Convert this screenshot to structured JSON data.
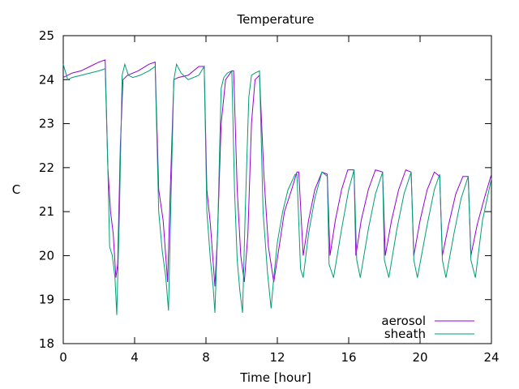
{
  "chart_data": {
    "type": "line",
    "title": "Temperature",
    "xlabel": "Time [hour]",
    "ylabel": "C",
    "xlim": [
      0,
      24
    ],
    "ylim": [
      18,
      25
    ],
    "xticks": [
      0,
      4,
      8,
      12,
      16,
      20,
      24
    ],
    "yticks": [
      18,
      19,
      20,
      21,
      22,
      23,
      24,
      25
    ],
    "grid": false,
    "legend_position": "bottom-right",
    "series": [
      {
        "name": "aerosol",
        "color": "#9400d3",
        "x": [
          0,
          0.5,
          1,
          1.5,
          2,
          2.35,
          2.5,
          2.65,
          2.8,
          2.95,
          3.05,
          3.2,
          3.35,
          3.6,
          4.2,
          4.8,
          5.15,
          5.35,
          5.6,
          5.85,
          6.0,
          6.2,
          6.45,
          7.0,
          7.6,
          7.9,
          8.05,
          8.25,
          8.5,
          8.65,
          8.85,
          9.1,
          9.45,
          9.55,
          9.75,
          9.95,
          10.15,
          10.35,
          10.55,
          10.75,
          11.0,
          11.25,
          11.5,
          11.8,
          12.1,
          12.4,
          12.8,
          13.1,
          13.2,
          13.45,
          13.75,
          14.1,
          14.5,
          14.8,
          14.95,
          15.25,
          15.6,
          15.95,
          16.3,
          16.4,
          16.7,
          17.1,
          17.5,
          17.9,
          18.05,
          18.4,
          18.8,
          19.2,
          19.5,
          19.65,
          20.0,
          20.4,
          20.8,
          21.1,
          21.25,
          21.6,
          22.0,
          22.4,
          22.7,
          22.85,
          23.2,
          23.6,
          24.0
        ],
        "y": [
          24.05,
          24.15,
          24.2,
          24.3,
          24.4,
          24.45,
          22.0,
          21.0,
          20.5,
          19.5,
          19.8,
          22.5,
          24.0,
          24.1,
          24.2,
          24.35,
          24.4,
          21.5,
          20.8,
          19.4,
          21.5,
          24.0,
          24.05,
          24.1,
          24.3,
          24.3,
          21.5,
          20.7,
          19.3,
          20.5,
          23.0,
          24.0,
          24.2,
          24.2,
          21.5,
          20.0,
          19.4,
          20.5,
          23.0,
          24.0,
          24.1,
          21.8,
          20.2,
          19.4,
          20.2,
          21.0,
          21.5,
          21.9,
          21.9,
          20.0,
          20.8,
          21.5,
          21.9,
          21.85,
          20.0,
          20.8,
          21.5,
          21.95,
          21.95,
          20.0,
          20.8,
          21.5,
          21.95,
          21.9,
          20.0,
          20.8,
          21.5,
          21.95,
          21.9,
          20.0,
          20.8,
          21.5,
          21.9,
          21.8,
          20.0,
          20.7,
          21.4,
          21.8,
          21.8,
          20.0,
          20.7,
          21.3,
          21.85
        ]
      },
      {
        "name": "sheath",
        "color": "#009e73",
        "x": [
          0,
          0.25,
          0.5,
          1,
          1.5,
          2,
          2.35,
          2.5,
          2.6,
          2.75,
          2.9,
          3.0,
          3.15,
          3.3,
          3.45,
          3.65,
          3.9,
          4.3,
          4.8,
          5.15,
          5.35,
          5.55,
          5.75,
          5.9,
          6.05,
          6.2,
          6.35,
          6.6,
          7.0,
          7.6,
          7.9,
          8.05,
          8.25,
          8.4,
          8.5,
          8.65,
          8.85,
          9.0,
          9.2,
          9.45,
          9.6,
          9.75,
          9.9,
          10.05,
          10.2,
          10.4,
          10.55,
          10.75,
          11.0,
          11.2,
          11.45,
          11.65,
          11.8,
          12.0,
          12.3,
          12.6,
          13.0,
          13.1,
          13.3,
          13.45,
          13.75,
          14.1,
          14.5,
          14.8,
          14.9,
          15.15,
          15.6,
          16.0,
          16.3,
          16.45,
          16.65,
          17.1,
          17.5,
          17.9,
          18.0,
          18.25,
          18.7,
          19.1,
          19.5,
          19.65,
          19.85,
          20.4,
          20.8,
          21.1,
          21.25,
          21.45,
          21.9,
          22.3,
          22.7,
          22.85,
          23.1,
          23.5,
          24.0
        ],
        "y": [
          24.35,
          24.0,
          24.05,
          24.1,
          24.15,
          24.2,
          24.25,
          22.0,
          20.2,
          20.0,
          19.5,
          18.65,
          21.0,
          24.1,
          24.35,
          24.1,
          24.05,
          24.1,
          24.2,
          24.3,
          21.0,
          20.1,
          19.5,
          18.75,
          21.5,
          24.0,
          24.35,
          24.15,
          24.0,
          24.1,
          24.3,
          21.0,
          19.9,
          19.3,
          18.7,
          20.5,
          23.8,
          24.05,
          24.15,
          24.2,
          21.5,
          19.9,
          19.2,
          18.7,
          21.0,
          23.6,
          24.1,
          24.15,
          24.2,
          21.0,
          19.6,
          18.8,
          19.5,
          20.3,
          21.0,
          21.5,
          21.85,
          21.85,
          19.7,
          19.5,
          20.5,
          21.3,
          21.9,
          21.8,
          19.8,
          19.5,
          20.6,
          21.5,
          21.95,
          19.9,
          19.5,
          20.6,
          21.4,
          21.9,
          19.9,
          19.5,
          20.6,
          21.4,
          21.9,
          19.9,
          19.5,
          20.7,
          21.5,
          21.85,
          19.9,
          19.5,
          20.5,
          21.3,
          21.8,
          19.9,
          19.5,
          20.8,
          21.75
        ]
      }
    ]
  }
}
